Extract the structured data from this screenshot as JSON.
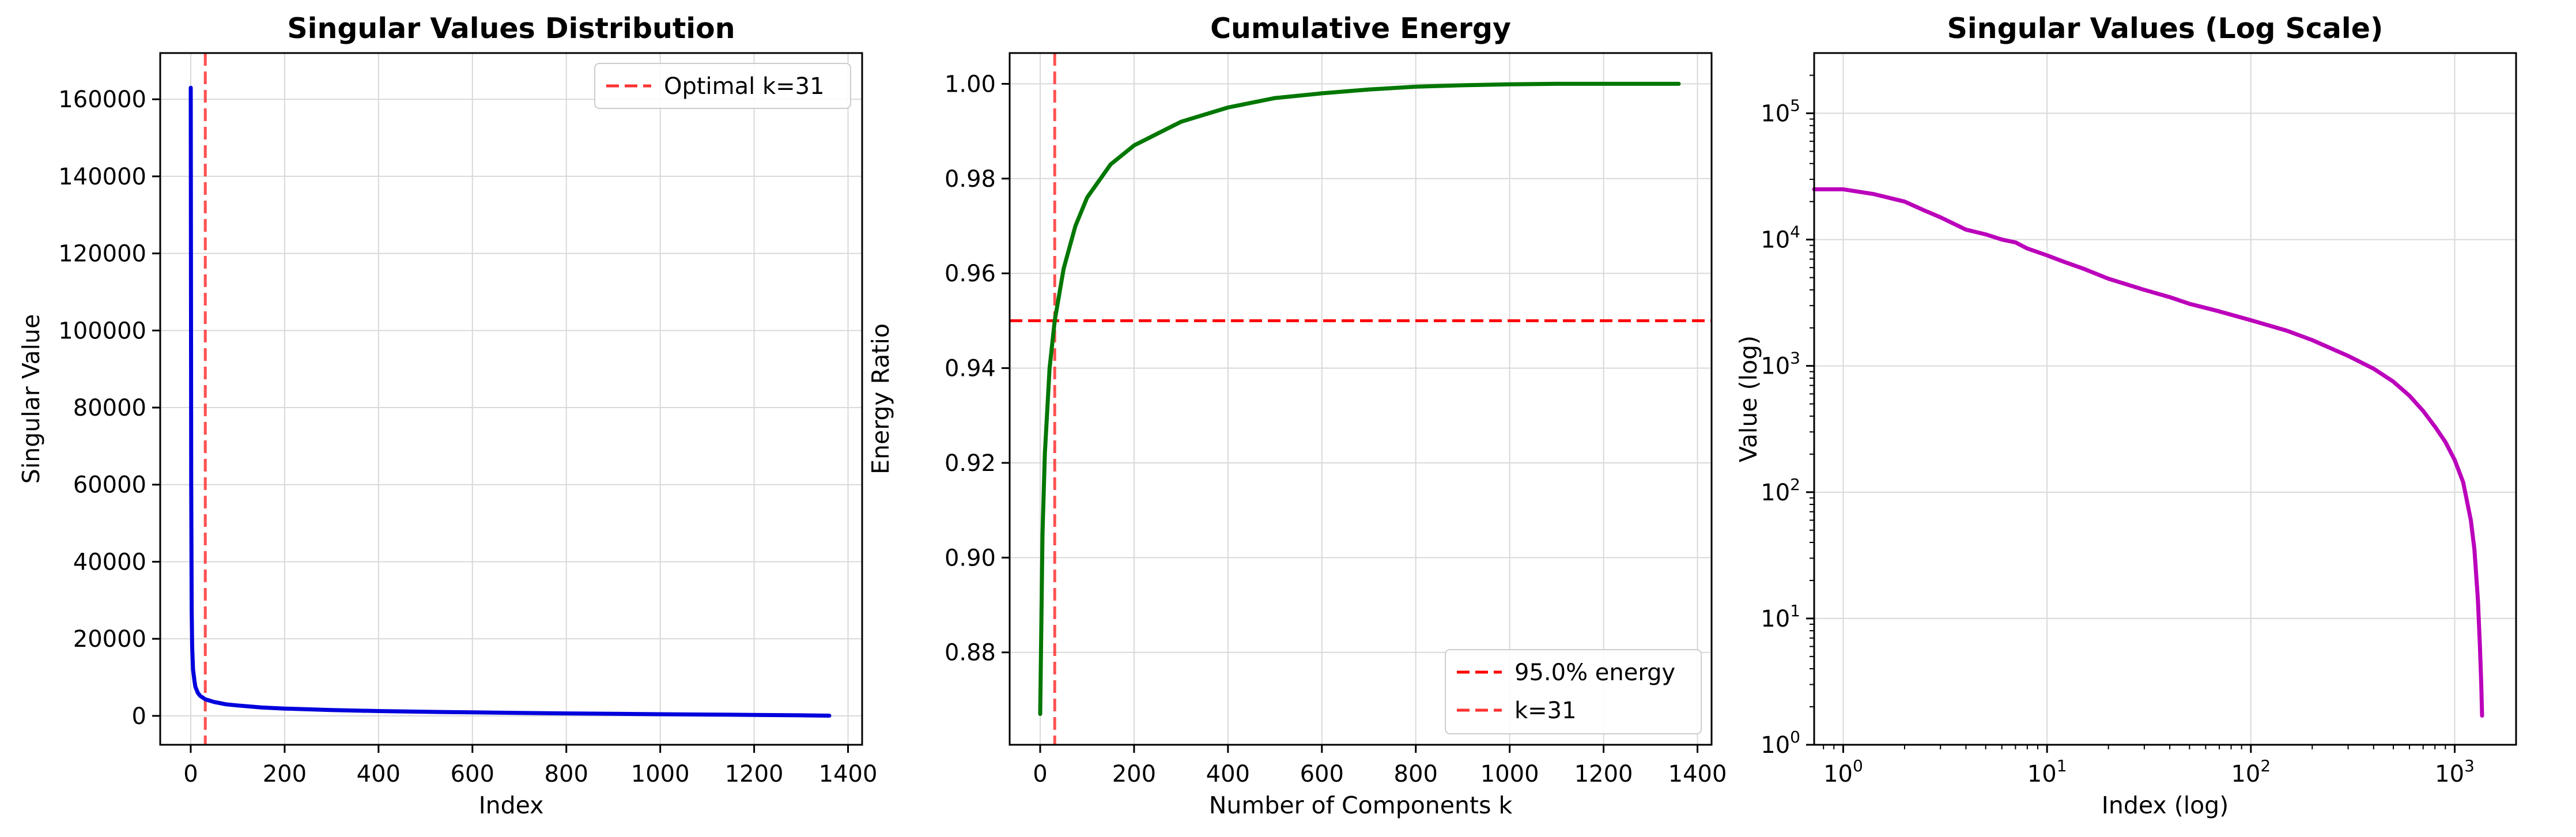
{
  "colors": {
    "singular": "#0000dd",
    "energy": "#007700",
    "log": "#bb00bb",
    "threshold": "#ff0000",
    "kline": "#ff3333",
    "grid": "#d9d9d9"
  },
  "chart_data": [
    {
      "type": "line",
      "title": "Singular Values Distribution",
      "xlabel": "Index",
      "ylabel": "Singular Value",
      "xlim": [
        -65,
        1430
      ],
      "ylim": [
        -7500,
        172000
      ],
      "xticks": [
        0,
        200,
        400,
        600,
        800,
        1000,
        1200,
        1400
      ],
      "xtick_labels": [
        "0",
        "200",
        "400",
        "600",
        "800",
        "1000",
        "1200",
        "1400"
      ],
      "yticks": [
        0,
        20000,
        40000,
        60000,
        80000,
        100000,
        120000,
        140000,
        160000
      ],
      "ytick_labels": [
        "0",
        "20000",
        "40000",
        "60000",
        "80000",
        "100000",
        "120000",
        "140000",
        "160000"
      ],
      "grid": true,
      "legend_position": "top-right",
      "legend": [
        "Optimal k=31"
      ],
      "series": [
        {
          "x": [
            0,
            1,
            2,
            3,
            5,
            8,
            10,
            15,
            20,
            31,
            50,
            75,
            100,
            150,
            200,
            300,
            400,
            500,
            600,
            700,
            800,
            900,
            1000,
            1100,
            1200,
            1300,
            1360
          ],
          "values": [
            163000,
            60000,
            28000,
            18000,
            12000,
            9000,
            7500,
            6000,
            5200,
            4300,
            3600,
            3000,
            2700,
            2200,
            1900,
            1500,
            1250,
            1050,
            900,
            760,
            640,
            530,
            430,
            340,
            250,
            150,
            60
          ]
        }
      ],
      "vlines": [
        {
          "x": 31,
          "label": "Optimal k=31"
        }
      ]
    },
    {
      "type": "line",
      "title": "Cumulative Energy",
      "xlabel": "Number of Components k",
      "ylabel": "Energy Ratio",
      "xlim": [
        -65,
        1430
      ],
      "ylim": [
        0.8605,
        1.0065
      ],
      "xticks": [
        0,
        200,
        400,
        600,
        800,
        1000,
        1200,
        1400
      ],
      "xtick_labels": [
        "0",
        "200",
        "400",
        "600",
        "800",
        "1000",
        "1200",
        "1400"
      ],
      "yticks": [
        0.88,
        0.9,
        0.92,
        0.94,
        0.96,
        0.98,
        1.0
      ],
      "ytick_labels": [
        "0.88",
        "0.90",
        "0.92",
        "0.94",
        "0.96",
        "0.98",
        "1.00"
      ],
      "grid": true,
      "legend_position": "bottom-right",
      "legend": [
        "95.0% energy",
        "k=31"
      ],
      "series": [
        {
          "x": [
            0,
            5,
            10,
            20,
            31,
            50,
            75,
            100,
            150,
            200,
            300,
            400,
            500,
            600,
            700,
            800,
            900,
            1000,
            1100,
            1200,
            1360
          ],
          "values": [
            0.867,
            0.905,
            0.922,
            0.94,
            0.95,
            0.961,
            0.97,
            0.976,
            0.983,
            0.987,
            0.992,
            0.995,
            0.997,
            0.998,
            0.9988,
            0.9994,
            0.9997,
            0.9999,
            1.0,
            1.0,
            1.0
          ]
        }
      ],
      "hlines": [
        {
          "y": 0.95,
          "label": "95.0% energy"
        }
      ],
      "vlines": [
        {
          "x": 31,
          "label": "k=31"
        }
      ]
    },
    {
      "type": "line",
      "title": "Singular Values (Log Scale)",
      "xlabel": "Index (log)",
      "ylabel": "Value (log)",
      "log_x": true,
      "log_y": true,
      "xlim": [
        0.72,
        2000
      ],
      "ylim": [
        1,
        300000
      ],
      "xtick_exponents": [
        0,
        1,
        2,
        3
      ],
      "ytick_exponents": [
        0,
        1,
        2,
        3,
        4,
        5
      ],
      "grid": true,
      "series": [
        {
          "x": [
            0.72,
            1,
            1.4,
            2,
            2.5,
            3,
            4,
            5,
            6,
            7,
            8,
            10,
            12,
            15,
            20,
            30,
            40,
            50,
            70,
            100,
            150,
            200,
            300,
            400,
            500,
            600,
            700,
            800,
            900,
            1000,
            1100,
            1200,
            1250,
            1300,
            1330,
            1350,
            1362
          ],
          "values": [
            25000,
            25000,
            23000,
            20000,
            17000,
            15000,
            12000,
            11000,
            10000,
            9500,
            8500,
            7500,
            6700,
            5900,
            4900,
            4000,
            3500,
            3100,
            2700,
            2300,
            1900,
            1600,
            1200,
            950,
            750,
            580,
            440,
            330,
            250,
            180,
            120,
            60,
            35,
            14,
            6,
            3,
            1.7
          ]
        }
      ]
    }
  ]
}
